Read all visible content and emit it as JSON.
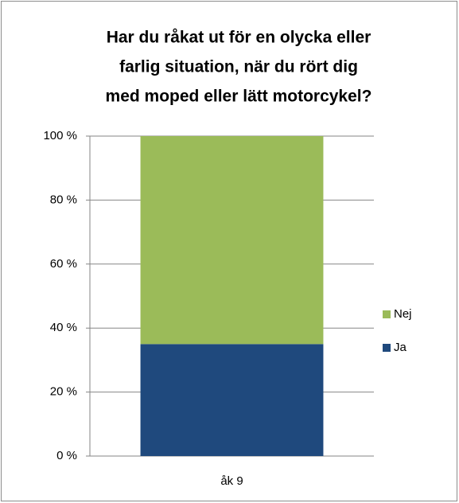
{
  "chart_data": {
    "type": "stacked_bar",
    "title": [
      "Har du råkat ut för en olycka eller",
      "farlig situation, när du rört dig",
      "med moped eller lätt motorcykel?"
    ],
    "categories": [
      "åk 9"
    ],
    "series": [
      {
        "name": "Ja",
        "color": "#1f497d",
        "values": [
          35
        ]
      },
      {
        "name": "Nej",
        "color": "#9bbb59",
        "values": [
          65
        ]
      }
    ],
    "ylim": [
      0,
      100
    ],
    "yticks": [
      {
        "value": 0,
        "label": "0 %"
      },
      {
        "value": 20,
        "label": "20 %"
      },
      {
        "value": 40,
        "label": "40 %"
      },
      {
        "value": 60,
        "label": "60 %"
      },
      {
        "value": 80,
        "label": "80 %"
      },
      {
        "value": 100,
        "label": "100 %"
      }
    ],
    "grid": true,
    "legend": "right"
  }
}
